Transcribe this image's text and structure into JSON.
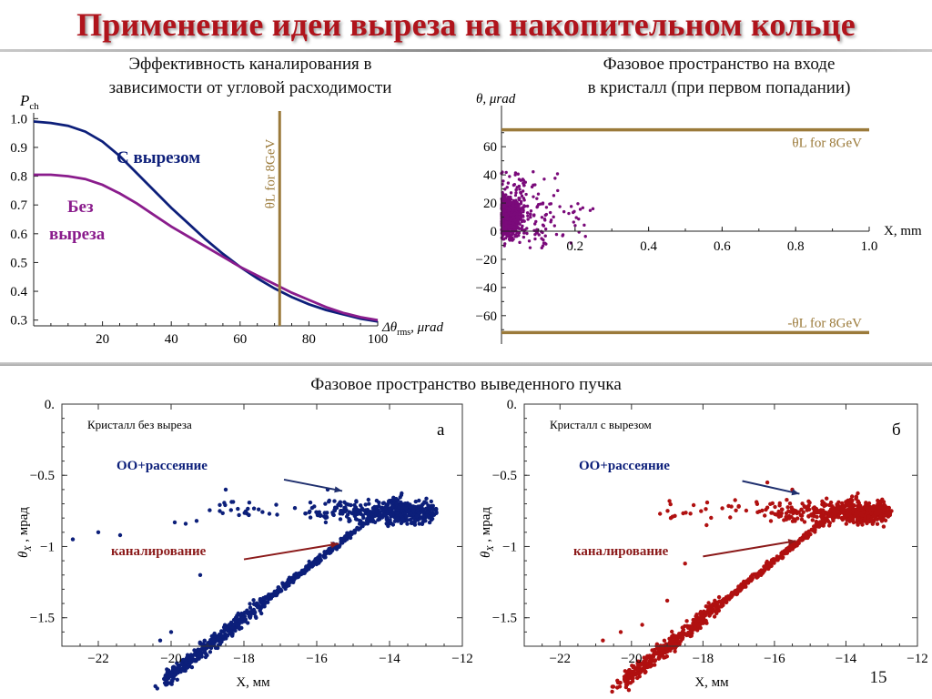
{
  "slide": {
    "title": "Применение идеи выреза на накопительном кольце",
    "number": "15"
  },
  "captions": {
    "top_left": [
      "Эффективность каналирования в",
      "зависимости от угловой расходимости"
    ],
    "top_right": [
      "Фазовое пространство на входе",
      "в кристалл (при первом попадании)"
    ],
    "bottom": "Фазовое пространство выведенного пучка"
  },
  "colors": {
    "title": "#b0141c",
    "with_cut": "#0d1f7a",
    "without_cut": "#8a1c8c",
    "theta_line": "#9b7a3a",
    "phase_points": "#7a0a7a",
    "scatter_a": "#0c1f7a",
    "scatter_b": "#b01010",
    "arrow_oo": "#1f2f6e",
    "arrow_ch": "#8b1a1a"
  },
  "chart_data": [
    {
      "id": "efficiency",
      "type": "line",
      "ylabel_main": "P",
      "ylabel_sub": "ch",
      "xlabel_pre": "Δθ",
      "xlabel_sub": "rms",
      "xlabel_post": ", μrad",
      "xlim": [
        0,
        100
      ],
      "ylim": [
        0.28,
        1.02
      ],
      "xticks": [
        20,
        40,
        60,
        80,
        100
      ],
      "xtick_labels": [
        "20",
        "40",
        "60",
        "80",
        "100"
      ],
      "yticks": [
        0.3,
        0.4,
        0.5,
        0.6,
        0.7,
        0.8,
        0.9,
        1.0
      ],
      "ytick_labels": [
        "0.3",
        "0.4",
        "0.5",
        "0.6",
        "0.7",
        "0.8",
        "0.9",
        "1.0"
      ],
      "vline": {
        "x": 71.5,
        "label": "θL for 8GeV"
      },
      "series": [
        {
          "name": "С вырезом",
          "color": "#0d1f7a",
          "x": [
            0,
            5,
            10,
            15,
            20,
            25,
            30,
            35,
            40,
            45,
            50,
            55,
            60,
            65,
            70,
            75,
            80,
            85,
            90,
            95,
            100
          ],
          "y": [
            0.99,
            0.985,
            0.975,
            0.955,
            0.92,
            0.87,
            0.81,
            0.75,
            0.69,
            0.635,
            0.58,
            0.53,
            0.485,
            0.445,
            0.41,
            0.38,
            0.355,
            0.335,
            0.32,
            0.305,
            0.295
          ]
        },
        {
          "name": "Без выреза",
          "color": "#8a1c8c",
          "x": [
            0,
            5,
            10,
            15,
            20,
            25,
            30,
            35,
            40,
            45,
            50,
            55,
            60,
            65,
            70,
            75,
            80,
            85,
            90,
            95,
            100
          ],
          "y": [
            0.805,
            0.805,
            0.8,
            0.79,
            0.77,
            0.74,
            0.705,
            0.665,
            0.625,
            0.59,
            0.555,
            0.52,
            0.485,
            0.455,
            0.425,
            0.395,
            0.37,
            0.345,
            0.325,
            0.31,
            0.3
          ]
        }
      ],
      "annotations": [
        {
          "text": "С вырезом",
          "color": "#0d1f7a"
        },
        {
          "text": "Без",
          "color": "#8a1c8c"
        },
        {
          "text": "выреза",
          "color": "#8a1c8c"
        }
      ]
    },
    {
      "id": "phase-entry",
      "type": "scatter",
      "ylabel": "θ, μrad",
      "xlabel": "X, mm",
      "xlim": [
        0,
        1.0
      ],
      "ylim": [
        -75,
        75
      ],
      "xticks": [
        0.2,
        0.4,
        0.6,
        0.8,
        1.0
      ],
      "xtick_labels": [
        "0.2",
        "0.4",
        "0.6",
        "0.8",
        "1.0"
      ],
      "yticks": [
        -60,
        -40,
        -20,
        0,
        20,
        40,
        60
      ],
      "ytick_labels": [
        "−60",
        "−40",
        "−20",
        "0",
        "20",
        "40",
        "60"
      ],
      "hlines": [
        {
          "y": 72,
          "label": "θL for 8GeV"
        },
        {
          "y": -72,
          "label": "-θL for 8GeV"
        }
      ],
      "cluster": {
        "x_range": [
          0,
          0.25
        ],
        "y_range": [
          -18,
          55
        ],
        "count": 1400
      }
    },
    {
      "id": "extracted-a",
      "type": "scatter",
      "panel_label": "а",
      "note": "Кристалл без выреза",
      "ylabel": "θ",
      "ylabel_sub": "X",
      "ylabel_post": " , мрад",
      "xlabel": "X, мм",
      "xlim": [
        -23,
        -12
      ],
      "ylim": [
        -1.7,
        0
      ],
      "xticks": [
        -22,
        -20,
        -18,
        -16,
        -14,
        -12
      ],
      "xtick_labels": [
        "−22",
        "−20",
        "−18",
        "−16",
        "−14",
        "−12"
      ],
      "yticks": [
        0,
        -0.5,
        -1,
        -1.5
      ],
      "ytick_labels": [
        "0.",
        "−0.5",
        "−1",
        "−1.5"
      ],
      "labels": [
        {
          "text": "OO+рассеяние",
          "color": "#0c1f7a"
        },
        {
          "text": "каналирование",
          "color": "#8b1a1a"
        }
      ],
      "arrows": [
        {
          "from": [
            -16.9,
            -0.53
          ],
          "to": [
            -15.3,
            -0.61
          ]
        },
        {
          "from": [
            -18.0,
            -1.09
          ],
          "to": [
            -15.4,
            -0.98
          ]
        }
      ]
    },
    {
      "id": "extracted-b",
      "type": "scatter",
      "panel_label": "б",
      "note": "Кристалл с вырезом",
      "ylabel": "θ",
      "ylabel_sub": "X",
      "ylabel_post": " , мрад",
      "xlabel": "X, мм",
      "xlim": [
        -23,
        -12
      ],
      "ylim": [
        -1.7,
        0
      ],
      "xticks": [
        -22,
        -20,
        -18,
        -16,
        -14,
        -12
      ],
      "xtick_labels": [
        "−22",
        "−20",
        "−18",
        "−16",
        "−14",
        "−12"
      ],
      "yticks": [
        0,
        -0.5,
        -1,
        -1.5
      ],
      "ytick_labels": [
        "0.",
        "−0.5",
        "−1",
        "−1.5"
      ],
      "labels": [
        {
          "text": "OO+рассеяние",
          "color": "#0c1f7a"
        },
        {
          "text": "каналирование",
          "color": "#8b1a1a"
        }
      ],
      "arrows": [
        {
          "from": [
            -16.9,
            -0.54
          ],
          "to": [
            -15.3,
            -0.63
          ]
        },
        {
          "from": [
            -18.0,
            -1.07
          ],
          "to": [
            -15.4,
            -0.96
          ]
        }
      ]
    }
  ]
}
